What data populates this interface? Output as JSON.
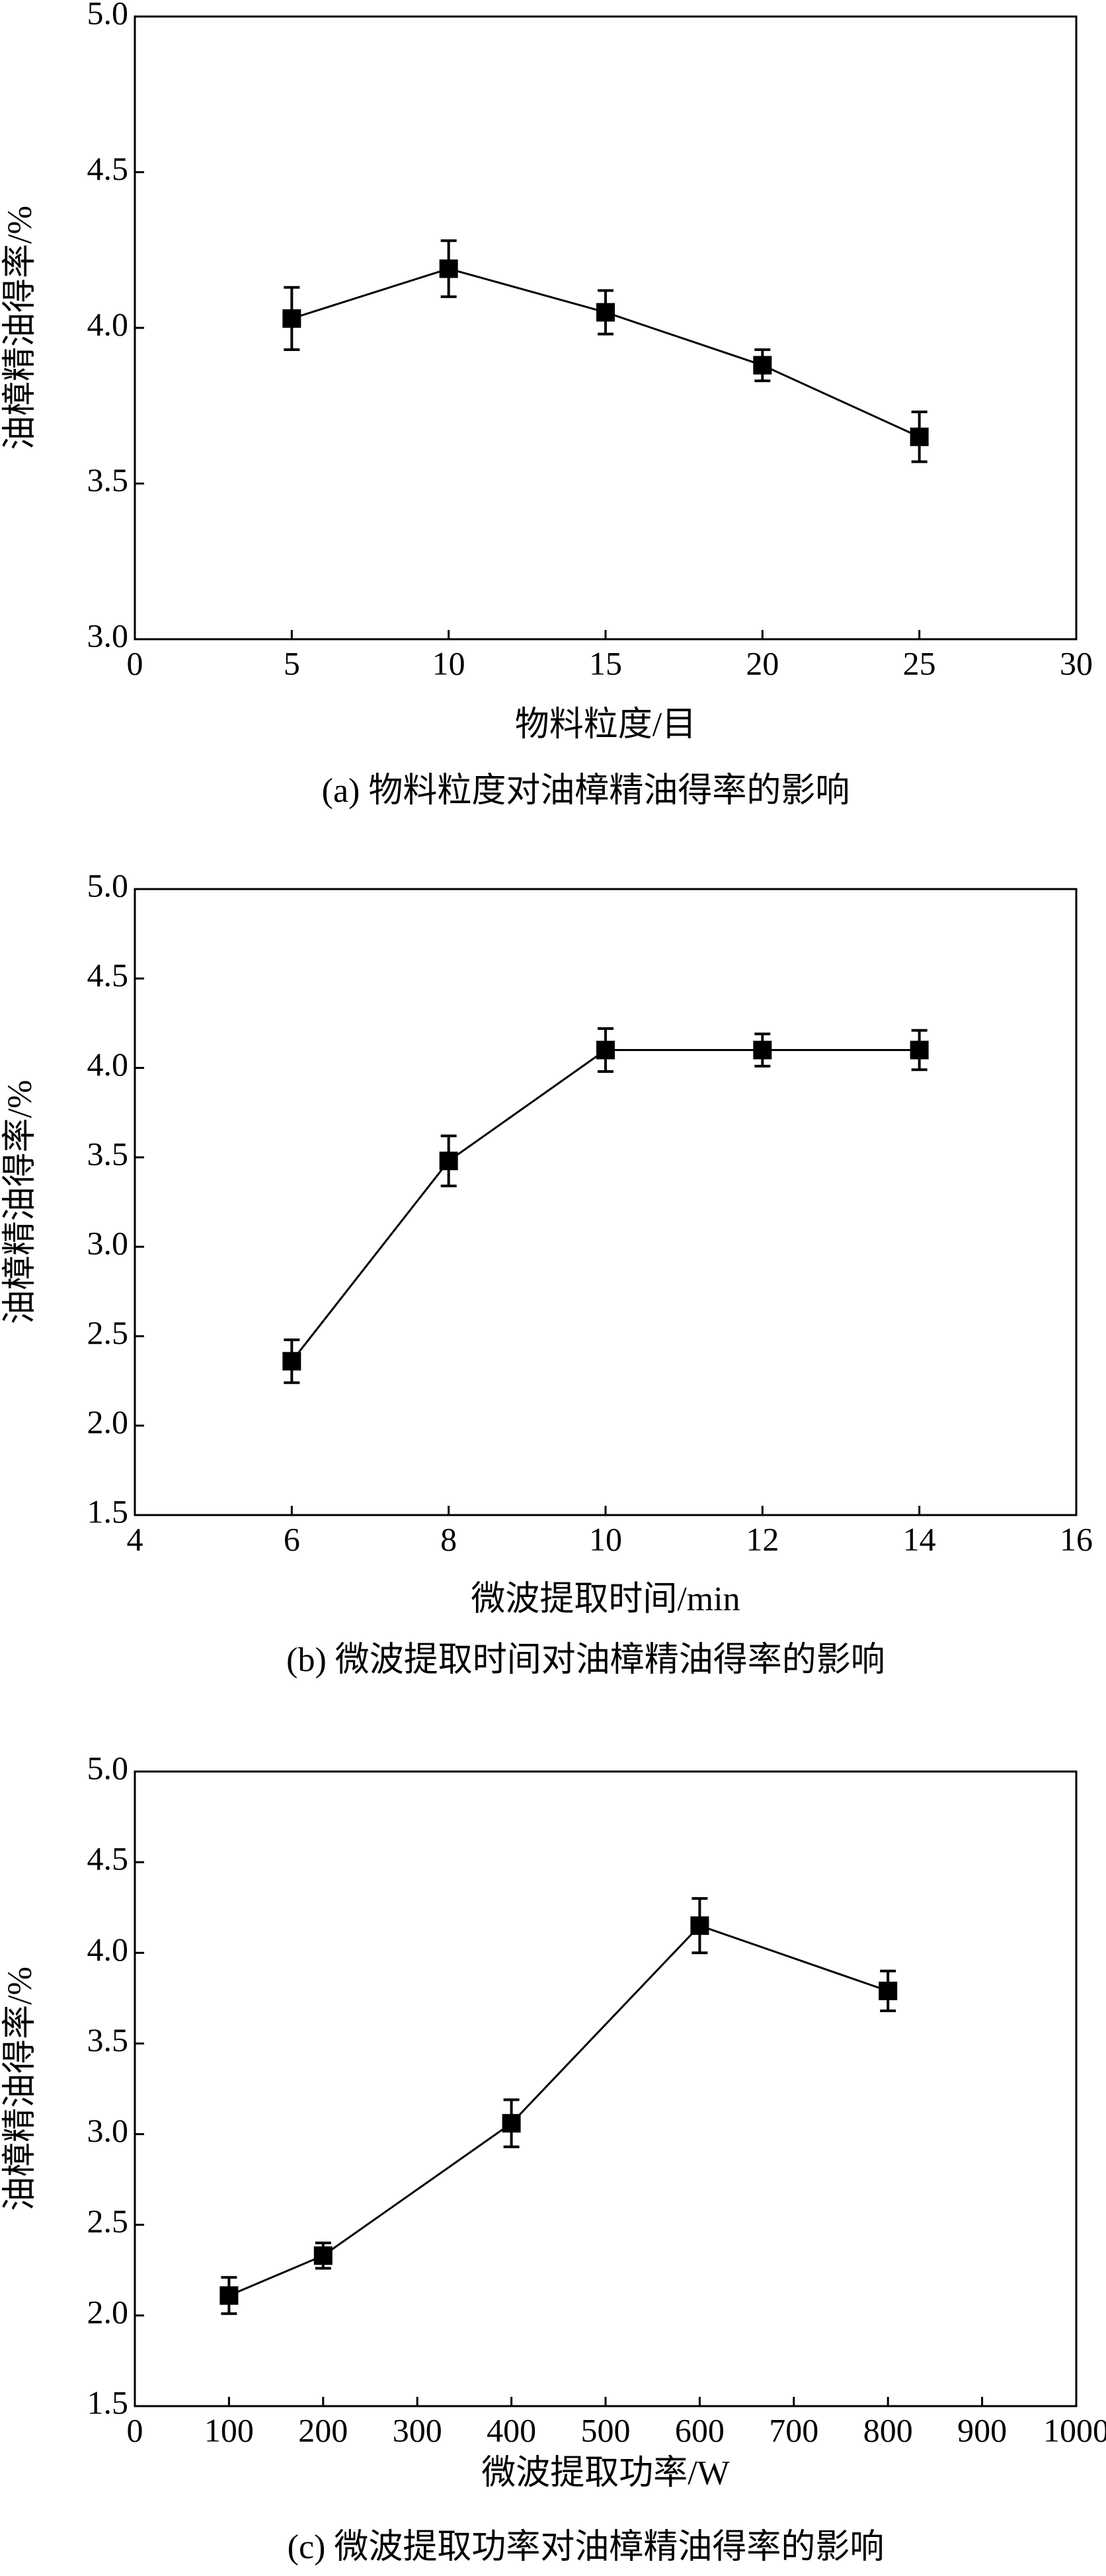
{
  "chart_data": [
    {
      "type": "line",
      "title": "(a) 物料粒度对油樟精油得率的影响",
      "x_label": "物料粒度/目",
      "y_label": "油樟精油得率/%",
      "x": [
        5,
        10,
        15,
        20,
        25
      ],
      "series": [
        {
          "color": "#000000",
          "values": [
            4.03,
            4.19,
            4.05,
            3.88,
            3.65
          ],
          "errors": [
            0.1,
            0.09,
            0.07,
            0.05,
            0.08
          ]
        }
      ],
      "xlim": [
        0,
        30
      ],
      "xticks": [
        0,
        5,
        10,
        15,
        20,
        25,
        30
      ],
      "ylim": [
        3,
        5
      ],
      "yticks": [
        {
          "value": 3,
          "label": "3.0"
        },
        3.5,
        {
          "value": 4,
          "label": "4.0"
        },
        4.5,
        {
          "value": 5,
          "label": "5.0"
        }
      ]
    },
    {
      "type": "line",
      "title": "(b) 微波提取时间对油樟精油得率的影响",
      "x_label": "微波提取时间/min",
      "y_label": "油樟精油得率/%",
      "x": [
        6,
        8,
        10,
        12,
        14
      ],
      "series": [
        {
          "color": "#000000",
          "values": [
            2.36,
            3.48,
            4.1,
            4.1,
            4.1
          ],
          "errors": [
            0.12,
            0.14,
            0.12,
            0.09,
            0.11
          ]
        }
      ],
      "xlim": [
        4,
        16
      ],
      "xticks": [
        4,
        6,
        8,
        10,
        12,
        14,
        16
      ],
      "ylim": [
        1.5,
        5
      ],
      "yticks": [
        1.5,
        {
          "value": 2,
          "label": "2.0"
        },
        2.5,
        {
          "value": 3,
          "label": "3.0"
        },
        3.5,
        {
          "value": 4,
          "label": "4.0"
        },
        4.5,
        {
          "value": 5,
          "label": "5.0"
        }
      ]
    },
    {
      "type": "line",
      "title": "(c) 微波提取功率对油樟精油得率的影响",
      "x_label": "微波提取功率/W",
      "y_label": "油樟精油得率/%",
      "x": [
        100,
        200,
        400,
        600,
        800
      ],
      "series": [
        {
          "color": "#000000",
          "values": [
            2.11,
            2.33,
            3.06,
            4.15,
            3.79
          ],
          "errors": [
            0.1,
            0.07,
            0.13,
            0.15,
            0.11
          ]
        }
      ],
      "xlim": [
        0,
        1000
      ],
      "xticks": [
        0,
        100,
        200,
        300,
        400,
        500,
        600,
        700,
        800,
        900,
        1000
      ],
      "ylim": [
        1.5,
        5
      ],
      "yticks": [
        1.5,
        {
          "value": 2,
          "label": "2.0"
        },
        2.5,
        {
          "value": 3,
          "label": "3.0"
        },
        3.5,
        {
          "value": 4,
          "label": "4.0"
        },
        4.5,
        {
          "value": 5,
          "label": "5.0"
        }
      ]
    }
  ]
}
